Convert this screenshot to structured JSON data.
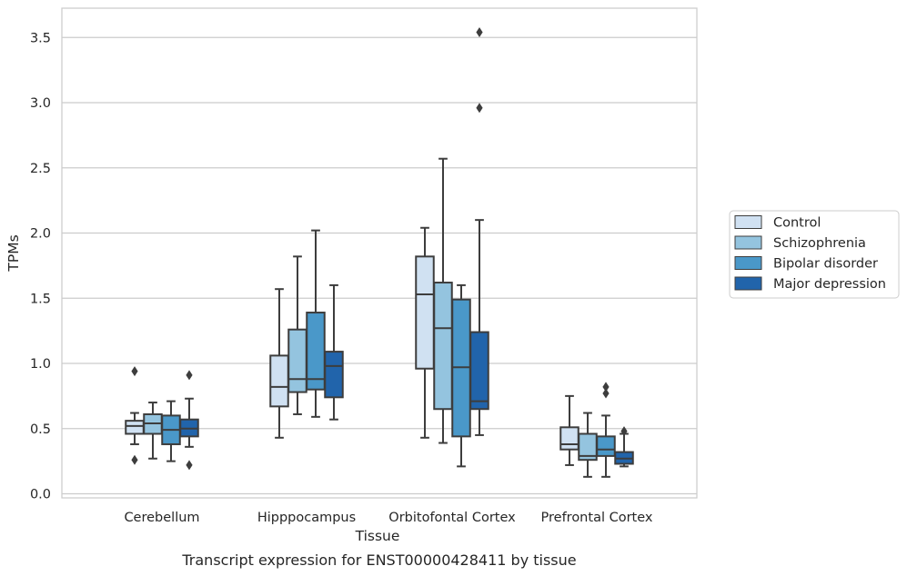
{
  "chart_data": {
    "type": "boxplot",
    "caption": "Transcript expression for ENST00000428411 by tissue",
    "xlabel": "Tissue",
    "ylabel": "TPMs",
    "ylim": [
      -0.02,
      3.72
    ],
    "yticks": [
      "0.0",
      "0.5",
      "1.0",
      "1.5",
      "2.0",
      "2.5",
      "3.0",
      "3.5"
    ],
    "grid": "horizontal",
    "legend_position": "right",
    "categories": [
      "Cerebellum",
      "Hipppocampus",
      "Orbitofontal Cortex",
      "Prefrontal Cortex"
    ],
    "series": [
      {
        "name": "Control",
        "color": "#d0e1f2",
        "boxes": [
          {
            "whisker_low": 0.38,
            "q1": 0.46,
            "median": 0.52,
            "q3": 0.56,
            "whisker_high": 0.62,
            "outliers": [
              0.26,
              0.94
            ]
          },
          {
            "whisker_low": 0.43,
            "q1": 0.67,
            "median": 0.82,
            "q3": 1.06,
            "whisker_high": 1.57,
            "outliers": []
          },
          {
            "whisker_low": 0.43,
            "q1": 0.96,
            "median": 1.53,
            "q3": 1.82,
            "whisker_high": 2.04,
            "outliers": []
          },
          {
            "whisker_low": 0.22,
            "q1": 0.34,
            "median": 0.38,
            "q3": 0.51,
            "whisker_high": 0.75,
            "outliers": []
          }
        ]
      },
      {
        "name": "Schizophrenia",
        "color": "#94c4df",
        "boxes": [
          {
            "whisker_low": 0.27,
            "q1": 0.46,
            "median": 0.54,
            "q3": 0.61,
            "whisker_high": 0.7,
            "outliers": []
          },
          {
            "whisker_low": 0.61,
            "q1": 0.78,
            "median": 0.88,
            "q3": 1.26,
            "whisker_high": 1.82,
            "outliers": []
          },
          {
            "whisker_low": 0.39,
            "q1": 0.65,
            "median": 1.27,
            "q3": 1.62,
            "whisker_high": 2.57,
            "outliers": []
          },
          {
            "whisker_low": 0.13,
            "q1": 0.26,
            "median": 0.29,
            "q3": 0.46,
            "whisker_high": 0.62,
            "outliers": []
          }
        ]
      },
      {
        "name": "Bipolar disorder",
        "color": "#4a98c9",
        "boxes": [
          {
            "whisker_low": 0.25,
            "q1": 0.38,
            "median": 0.49,
            "q3": 0.6,
            "whisker_high": 0.71,
            "outliers": []
          },
          {
            "whisker_low": 0.59,
            "q1": 0.8,
            "median": 0.88,
            "q3": 1.39,
            "whisker_high": 2.02,
            "outliers": []
          },
          {
            "whisker_low": 0.21,
            "q1": 0.44,
            "median": 0.97,
            "q3": 1.49,
            "whisker_high": 1.6,
            "outliers": []
          },
          {
            "whisker_low": 0.13,
            "q1": 0.29,
            "median": 0.34,
            "q3": 0.44,
            "whisker_high": 0.6,
            "outliers": [
              0.77,
              0.82
            ]
          }
        ]
      },
      {
        "name": "Major depression",
        "color": "#2164ab",
        "boxes": [
          {
            "whisker_low": 0.36,
            "q1": 0.44,
            "median": 0.5,
            "q3": 0.57,
            "whisker_high": 0.73,
            "outliers": [
              0.22,
              0.91
            ]
          },
          {
            "whisker_low": 0.57,
            "q1": 0.74,
            "median": 0.98,
            "q3": 1.09,
            "whisker_high": 1.6,
            "outliers": []
          },
          {
            "whisker_low": 0.45,
            "q1": 0.65,
            "median": 0.71,
            "q3": 1.24,
            "whisker_high": 2.1,
            "outliers": [
              2.96,
              3.54
            ]
          },
          {
            "whisker_low": 0.21,
            "q1": 0.23,
            "median": 0.27,
            "q3": 0.32,
            "whisker_high": 0.46,
            "outliers": [
              0.48
            ]
          }
        ]
      }
    ]
  }
}
